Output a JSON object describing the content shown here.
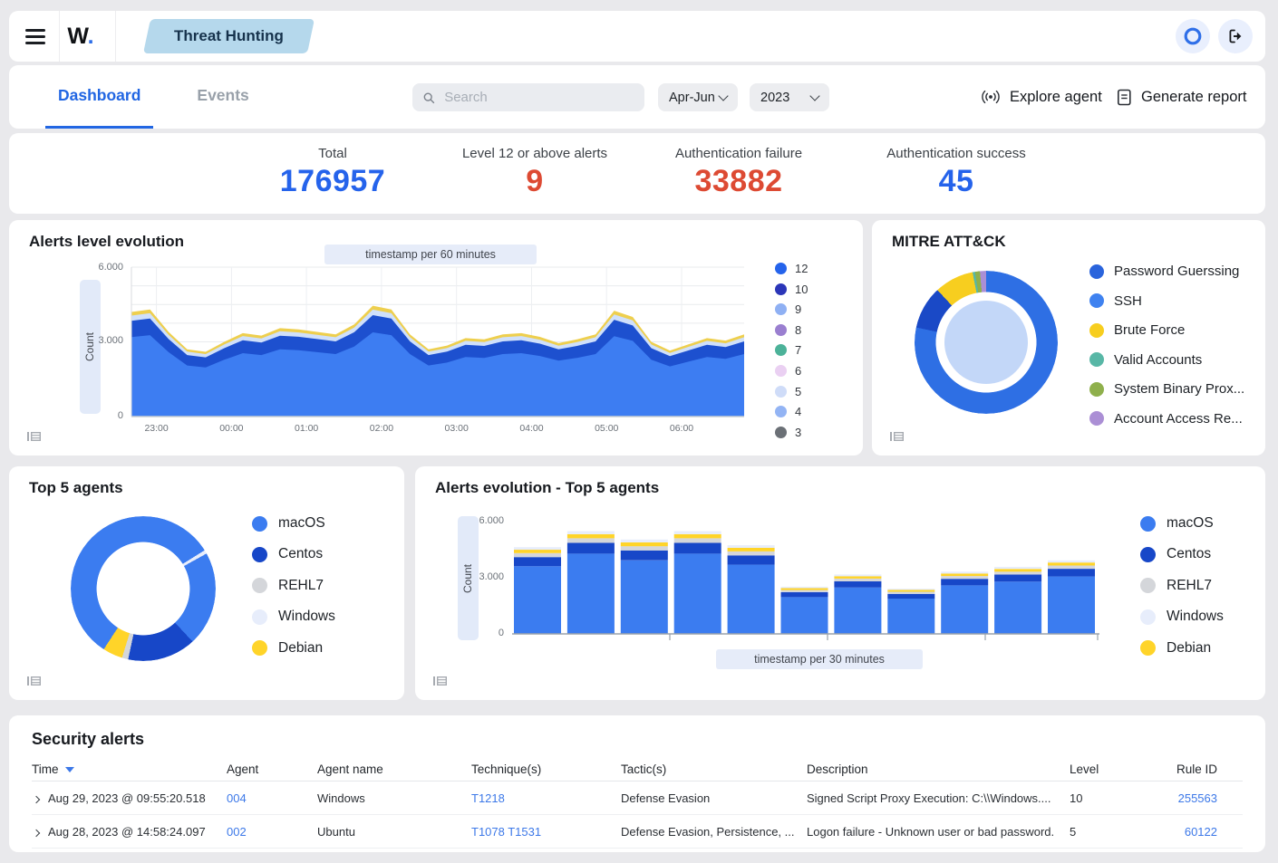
{
  "topbar": {
    "logo_text": "W",
    "logo_dot": ".",
    "workspace": "Threat Hunting"
  },
  "nav": {
    "tabs": [
      {
        "label": "Dashboard",
        "active": true
      },
      {
        "label": "Events",
        "active": false
      }
    ],
    "search_placeholder": "Search",
    "period": "Apr-Jun",
    "year": "2023",
    "explore_label": "Explore agent",
    "report_label": "Generate report"
  },
  "stats": [
    {
      "label": "Total",
      "value": "176957",
      "color": "#2563eb"
    },
    {
      "label": "Level 12 or above alerts",
      "value": "9",
      "color": "#dd4a33"
    },
    {
      "label": "Authentication failure",
      "value": "33882",
      "color": "#dd4a33"
    },
    {
      "label": "Authentication success",
      "value": "45",
      "color": "#2563eb"
    }
  ],
  "chart_data": [
    {
      "id": "alerts_level_evolution",
      "type": "area",
      "title": "Alerts level evolution",
      "badge": "timestamp per 60 minutes",
      "ylabel": "Count",
      "ylim": [
        0,
        6000
      ],
      "y_ticks": [
        "6.000",
        "3.000",
        "0"
      ],
      "x_start": "22:40",
      "x_end": "06:50",
      "x_ticks": [
        "23:00",
        "00:00",
        "01:00",
        "02:00",
        "03:00",
        "04:00",
        "05:00",
        "06:00"
      ],
      "grid": true,
      "legend_position": "right",
      "totals": [
        4200,
        4300,
        3400,
        2700,
        2600,
        3000,
        3350,
        3250,
        3550,
        3500,
        3400,
        3300,
        3700,
        4450,
        4300,
        3300,
        2700,
        2850,
        3150,
        3100,
        3300,
        3350,
        3200,
        2950,
        3100,
        3300,
        4250,
        4000,
        3000,
        2650,
        2900,
        3150,
        3050,
        3300
      ],
      "layers": [
        {
          "name": "lower band",
          "color": "#3d7df2",
          "frac": 0.76
        },
        {
          "name": "mid band",
          "color": "#1d50cf",
          "frac": 0.155
        },
        {
          "name": "upper band",
          "color": "#cfe0fb",
          "frac": 0.05
        },
        {
          "name": "top band",
          "color": "#eecf4e",
          "frac": 0.035
        }
      ],
      "legend": [
        {
          "label": "12",
          "color": "#2563eb"
        },
        {
          "label": "10",
          "color": "#2b36b8"
        },
        {
          "label": "9",
          "color": "#8fb0f3"
        },
        {
          "label": "8",
          "color": "#9a7fd0"
        },
        {
          "label": "7",
          "color": "#4cb299"
        },
        {
          "label": "6",
          "color": "#ead0f2"
        },
        {
          "label": "5",
          "color": "#cfdcf8"
        },
        {
          "label": "4",
          "color": "#93b4f4"
        },
        {
          "label": "3",
          "color": "#6b7076"
        }
      ]
    },
    {
      "id": "mitre_attack",
      "type": "donut",
      "title": "MITRE ATT&CK",
      "inner_color": "#c3d7f8",
      "legend": [
        {
          "label": "Password Guerssing",
          "color": "#2a64dc",
          "value": 78.3
        },
        {
          "label": "SSH",
          "color": "#3f82f0",
          "value": 9.7
        },
        {
          "label": "Brute Force",
          "color": "#f7ce1f",
          "value": 8.9
        },
        {
          "label": "Valid Accounts",
          "color": "#58b7a6",
          "value": 0.6
        },
        {
          "label": "System Binary Prox...",
          "color": "#8fb04c",
          "value": 1.1
        },
        {
          "label": "Account Access Re...",
          "color": "#ab8fd5",
          "value": 1.4
        }
      ],
      "segments": [
        {
          "label": "Password Guerssing",
          "color": "#2e6fe4",
          "deg": 282
        },
        {
          "label": "SSH",
          "color": "#1a49c6",
          "deg": 35
        },
        {
          "label": "Brute Force",
          "color": "#f7ce1f",
          "deg": 32
        },
        {
          "label": "Valid Accounts",
          "color": "#58b7a6",
          "deg": 2
        },
        {
          "label": "System Binary Prox...",
          "color": "#8fb04c",
          "deg": 4
        },
        {
          "label": "Account Access Re...",
          "color": "#ab8fd5",
          "deg": 5
        }
      ]
    },
    {
      "id": "top_5_agents",
      "type": "donut",
      "title": "Top 5 agents",
      "legend": [
        {
          "label": "macOS",
          "color": "#3b7cf0",
          "value": 76
        },
        {
          "label": "Centos",
          "color": "#1747c8",
          "value": 16.5
        },
        {
          "label": "REHL7",
          "color": "#d4d6da",
          "value": 1.5
        },
        {
          "label": "Windows",
          "color": "#e7edfb",
          "value": 1.5
        },
        {
          "label": "Debian",
          "color": "#ffd429",
          "value": 4.5
        }
      ],
      "segments": [
        {
          "label": "macOS",
          "color": "#3b7cf0",
          "deg": 58
        },
        {
          "label": "Windows",
          "color": "#e7edfb",
          "deg": 3
        },
        {
          "label": "macOS",
          "color": "#3b7cf0",
          "deg": 76
        },
        {
          "label": "Centos",
          "color": "#1747c8",
          "deg": 55
        },
        {
          "label": "REHL7",
          "color": "#d4d6da",
          "deg": 5
        },
        {
          "label": "Debian",
          "color": "#ffd429",
          "deg": 16
        },
        {
          "label": "macOS",
          "color": "#3b7cf0",
          "deg": 147
        }
      ]
    },
    {
      "id": "alerts_evolution_top5",
      "type": "bar",
      "title": "Alerts evolution - Top 5 agents",
      "badge": "timestamp per 30 minutes",
      "ylabel": "Count",
      "ylim": [
        0,
        6000
      ],
      "y_ticks": [
        "6.000",
        "3.000",
        "0"
      ],
      "stacked": true,
      "legend_position": "right",
      "totals": [
        4600,
        5450,
        5000,
        5450,
        4700,
        2500,
        3150,
        2400,
        3300,
        3550,
        3900
      ],
      "series": [
        {
          "name": "macOS",
          "color": "#3b7cf0",
          "frac": 0.78
        },
        {
          "name": "Centos",
          "color": "#1747c8",
          "frac": 0.105
        },
        {
          "name": "REHL7",
          "color": "#d4d6da",
          "frac": 0.045
        },
        {
          "name": "Debian",
          "color": "#ffd429",
          "frac": 0.04
        },
        {
          "name": "Windows",
          "color": "#e7edfb",
          "frac": 0.03
        }
      ],
      "legend": [
        {
          "label": "macOS",
          "color": "#3b7cf0"
        },
        {
          "label": "Centos",
          "color": "#1747c8"
        },
        {
          "label": "REHL7",
          "color": "#d4d6da"
        },
        {
          "label": "Windows",
          "color": "#e7edfb"
        },
        {
          "label": "Debian",
          "color": "#ffd429"
        }
      ]
    }
  ],
  "table": {
    "title": "Security alerts",
    "columns": [
      "Time",
      "Agent",
      "Agent name",
      "Technique(s)",
      "Tactic(s)",
      "Description",
      "Level",
      "Rule ID"
    ],
    "rows": [
      {
        "time": "Aug 29, 2023 @ 09:55:20.518",
        "agent": "004",
        "agent_name": "Windows",
        "techniques": "T1218",
        "tactics": "Defense Evasion",
        "description": "Signed Script Proxy Execution: C:\\\\Windows....",
        "level": "10",
        "rule_id": "255563"
      },
      {
        "time": "Aug 28, 2023 @ 14:58:24.097",
        "agent": "002",
        "agent_name": "Ubuntu",
        "techniques": "T1078  T1531",
        "tactics": "Defense Evasion, Persistence, ...",
        "description": "Logon failure - Unknown user or bad password.",
        "level": "5",
        "rule_id": "60122"
      }
    ]
  }
}
